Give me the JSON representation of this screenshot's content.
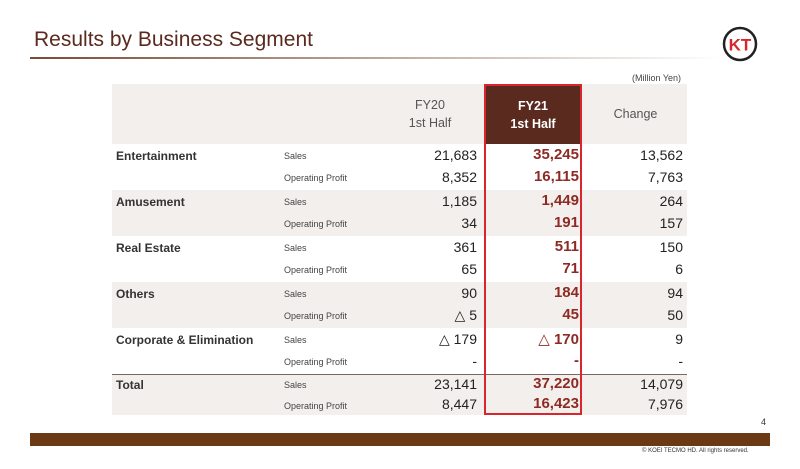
{
  "title": "Results by Business Segment",
  "logo_text": "KT",
  "unit": "(Million Yen)",
  "columns": [
    {
      "line1": "FY20",
      "line2": "1st Half"
    },
    {
      "line1": "FY21",
      "line2": "1st Half"
    },
    {
      "line1": "Change",
      "line2": ""
    }
  ],
  "segments": [
    {
      "name": "Entertainment",
      "rows": [
        {
          "metric": "Sales",
          "fy20": "21,683",
          "fy21": "35,245",
          "change": "13,562"
        },
        {
          "metric": "Operating Profit",
          "fy20": "8,352",
          "fy21": "16,115",
          "change": "7,763"
        }
      ]
    },
    {
      "name": "Amusement",
      "rows": [
        {
          "metric": "Sales",
          "fy20": "1,185",
          "fy21": "1,449",
          "change": "264"
        },
        {
          "metric": "Operating Profit",
          "fy20": "34",
          "fy21": "191",
          "change": "157"
        }
      ]
    },
    {
      "name": "Real Estate",
      "rows": [
        {
          "metric": "Sales",
          "fy20": "361",
          "fy21": "511",
          "change": "150"
        },
        {
          "metric": "Operating Profit",
          "fy20": "65",
          "fy21": "71",
          "change": "6"
        }
      ]
    },
    {
      "name": "Others",
      "rows": [
        {
          "metric": "Sales",
          "fy20": "90",
          "fy21": "184",
          "change": "94"
        },
        {
          "metric": "Operating Profit",
          "fy20": "△ 5",
          "fy21": "45",
          "change": "50"
        }
      ]
    },
    {
      "name": "Corporate & Elimination",
      "rows": [
        {
          "metric": "Sales",
          "fy20": "△ 179",
          "fy21": "△ 170",
          "change": "9"
        },
        {
          "metric": "Operating Profit",
          "fy20": "-",
          "fy21": "-",
          "change": "-"
        }
      ]
    },
    {
      "name": "Total",
      "rows": [
        {
          "metric": "Sales",
          "fy20": "23,141",
          "fy21": "37,220",
          "change": "14,079"
        },
        {
          "metric": "Operating Profit",
          "fy20": "8,447",
          "fy21": "16,423",
          "change": "7,976"
        }
      ]
    }
  ],
  "page_number": "4",
  "copyright": "© KOEI TECMO HD. All rights reserved."
}
